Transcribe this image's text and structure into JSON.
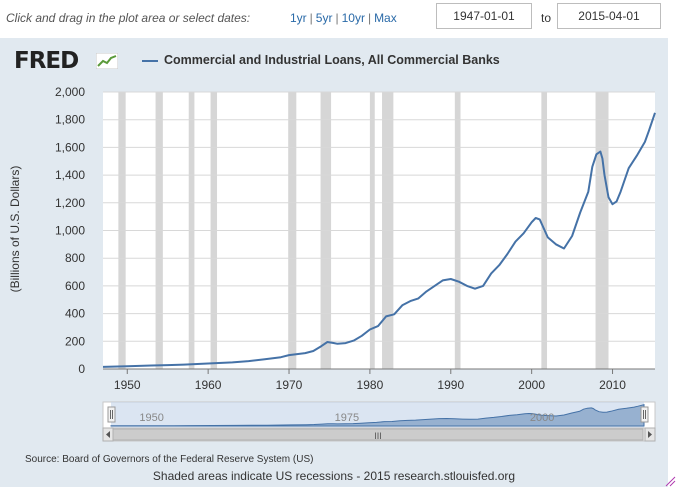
{
  "toolbar": {
    "hint": "Click and drag in the plot area or select dates:",
    "range_links": [
      "1yr",
      "5yr",
      "10yr",
      "Max"
    ],
    "start_date": "1947-01-01",
    "to_label": "to",
    "end_date": "2015-04-01"
  },
  "logo": {
    "text": "FRED",
    "icon": "fred-graph-icon"
  },
  "colors": {
    "series": "#4572a7",
    "recession": "#d6d6d6",
    "panel_bg": "#e1e9f0",
    "navigator_fill": "#c3d4e9"
  },
  "chart_data": {
    "type": "line",
    "title": "",
    "xlabel": "",
    "ylabel": "(Billions of U.S. Dollars)",
    "xlim": [
      1947,
      2015.25
    ],
    "ylim": [
      0,
      2000
    ],
    "yticks": [
      "0",
      "200",
      "400",
      "600",
      "800",
      "1,000",
      "1,200",
      "1,400",
      "1,600",
      "1,800",
      "2,000"
    ],
    "xticks": [
      "1950",
      "1960",
      "1970",
      "1980",
      "1990",
      "2000",
      "2010"
    ],
    "grid": true,
    "legend_position": "top",
    "series": [
      {
        "name": "Commercial and Industrial Loans, All Commercial Banks",
        "x": [
          1947,
          1950,
          1953,
          1955,
          1957,
          1960,
          1963,
          1965,
          1967,
          1969,
          1970,
          1972,
          1973,
          1974,
          1974.75,
          1975.5,
          1976,
          1977,
          1978,
          1979,
          1980,
          1981,
          1982,
          1983,
          1984,
          1985,
          1986,
          1987,
          1988,
          1989,
          1990,
          1991,
          1992,
          1993,
          1994,
          1995,
          1996,
          1997,
          1998,
          1999,
          2000,
          2000.5,
          2001,
          2002,
          2003,
          2004,
          2005,
          2006,
          2007,
          2007.5,
          2008,
          2008.5,
          2008.75,
          2009,
          2009.5,
          2010,
          2010.5,
          2011,
          2012,
          2013,
          2014,
          2014.5,
          2015.25
        ],
        "y": [
          15,
          20,
          25,
          28,
          32,
          40,
          48,
          57,
          70,
          85,
          100,
          115,
          130,
          165,
          195,
          188,
          182,
          187,
          205,
          240,
          285,
          310,
          380,
          395,
          460,
          490,
          510,
          560,
          600,
          640,
          650,
          630,
          600,
          580,
          600,
          690,
          750,
          830,
          920,
          980,
          1060,
          1090,
          1080,
          950,
          900,
          870,
          960,
          1130,
          1280,
          1460,
          1550,
          1570,
          1520,
          1400,
          1240,
          1190,
          1210,
          1280,
          1450,
          1540,
          1640,
          1720,
          1850
        ]
      }
    ],
    "recessions": [
      [
        1948.9,
        1949.8
      ],
      [
        1953.5,
        1954.4
      ],
      [
        1957.6,
        1958.3
      ],
      [
        1960.3,
        1961.1
      ],
      [
        1969.9,
        1970.9
      ],
      [
        1973.9,
        1975.2
      ],
      [
        1980.0,
        1980.6
      ],
      [
        1981.5,
        1982.9
      ],
      [
        1990.5,
        1991.2
      ],
      [
        2001.2,
        2001.9
      ],
      [
        2007.9,
        2009.5
      ]
    ],
    "navigator": {
      "labels": [
        "1950",
        "1975",
        "2000"
      ],
      "range": [
        1947,
        2015.25
      ]
    }
  },
  "source": "Source: Board of Governors of the Federal Reserve System (US)",
  "footer": "Shaded areas indicate US recessions - 2015 research.stlouisfed.org",
  "scrollbar": {
    "grip": "III"
  }
}
